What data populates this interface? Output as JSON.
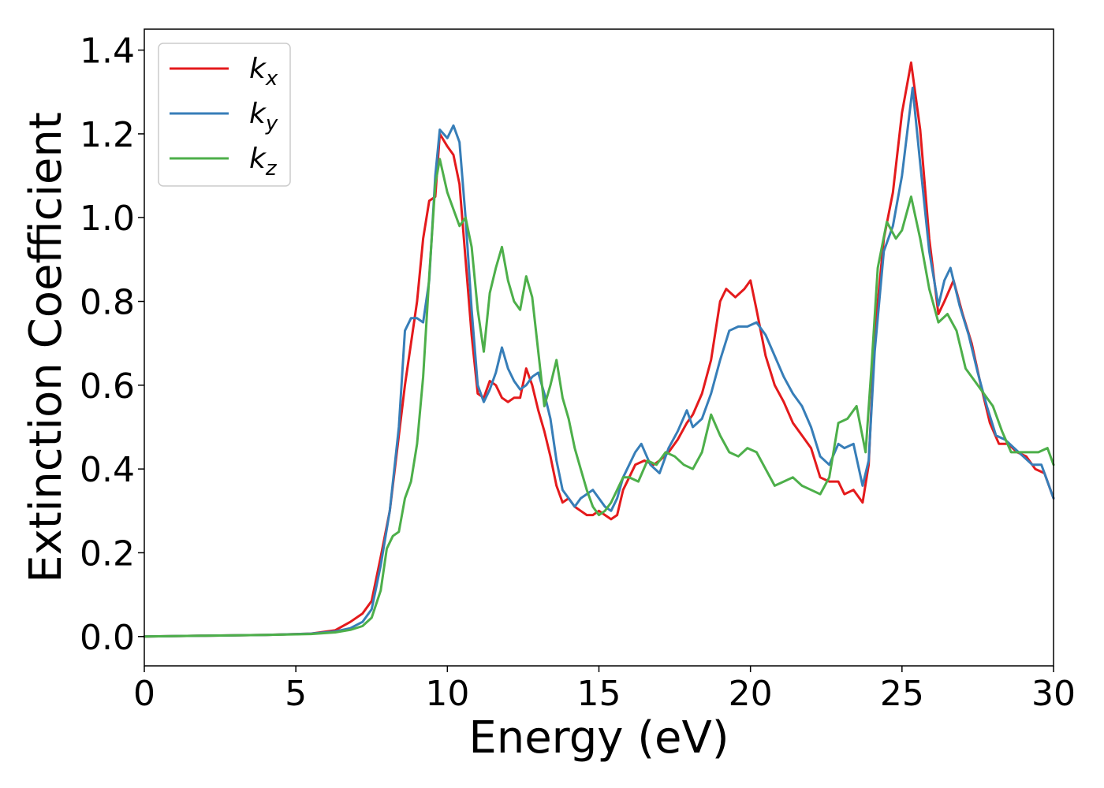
{
  "chart_data": {
    "type": "line",
    "xlabel": "Energy (eV)",
    "ylabel": "Extinction Coefficient",
    "xlim": [
      0,
      30
    ],
    "ylim": [
      -0.07,
      1.45
    ],
    "xticks": [
      0,
      5,
      10,
      15,
      20,
      25,
      30
    ],
    "xtick_labels": [
      "0",
      "5",
      "10",
      "15",
      "20",
      "25",
      "30"
    ],
    "yticks": [
      0.0,
      0.2,
      0.4,
      0.6,
      0.8,
      1.0,
      1.2,
      1.4
    ],
    "ytick_labels": [
      "0.0",
      "0.2",
      "0.4",
      "0.6",
      "0.8",
      "1.0",
      "1.2",
      "1.4"
    ],
    "grid": false,
    "legend_position": "top-left",
    "series": [
      {
        "name": "k",
        "subscript": "x",
        "color": "#e41a1c",
        "points": [
          [
            0,
            0
          ],
          [
            2,
            0.002
          ],
          [
            4,
            0.004
          ],
          [
            5.5,
            0.007
          ],
          [
            6.3,
            0.015
          ],
          [
            6.8,
            0.035
          ],
          [
            7.2,
            0.055
          ],
          [
            7.5,
            0.085
          ],
          [
            7.8,
            0.19
          ],
          [
            8.1,
            0.3
          ],
          [
            8.4,
            0.48
          ],
          [
            8.6,
            0.6
          ],
          [
            8.8,
            0.7
          ],
          [
            9.0,
            0.8
          ],
          [
            9.2,
            0.95
          ],
          [
            9.4,
            1.04
          ],
          [
            9.6,
            1.05
          ],
          [
            9.75,
            1.2
          ],
          [
            10.0,
            1.17
          ],
          [
            10.2,
            1.15
          ],
          [
            10.4,
            1.08
          ],
          [
            10.6,
            0.9
          ],
          [
            10.8,
            0.72
          ],
          [
            11.0,
            0.58
          ],
          [
            11.2,
            0.57
          ],
          [
            11.4,
            0.61
          ],
          [
            11.6,
            0.6
          ],
          [
            11.8,
            0.57
          ],
          [
            12.0,
            0.56
          ],
          [
            12.2,
            0.57
          ],
          [
            12.4,
            0.57
          ],
          [
            12.6,
            0.64
          ],
          [
            12.8,
            0.6
          ],
          [
            13.0,
            0.54
          ],
          [
            13.2,
            0.49
          ],
          [
            13.4,
            0.43
          ],
          [
            13.6,
            0.36
          ],
          [
            13.8,
            0.32
          ],
          [
            14.0,
            0.33
          ],
          [
            14.2,
            0.31
          ],
          [
            14.4,
            0.3
          ],
          [
            14.6,
            0.29
          ],
          [
            14.8,
            0.29
          ],
          [
            15.0,
            0.3
          ],
          [
            15.2,
            0.29
          ],
          [
            15.4,
            0.28
          ],
          [
            15.6,
            0.29
          ],
          [
            15.8,
            0.35
          ],
          [
            16.0,
            0.38
          ],
          [
            16.2,
            0.41
          ],
          [
            16.5,
            0.42
          ],
          [
            16.8,
            0.41
          ],
          [
            17.0,
            0.42
          ],
          [
            17.3,
            0.44
          ],
          [
            17.6,
            0.47
          ],
          [
            17.9,
            0.51
          ],
          [
            18.1,
            0.53
          ],
          [
            18.4,
            0.58
          ],
          [
            18.7,
            0.66
          ],
          [
            19.0,
            0.8
          ],
          [
            19.2,
            0.83
          ],
          [
            19.5,
            0.81
          ],
          [
            19.8,
            0.83
          ],
          [
            20.0,
            0.85
          ],
          [
            20.2,
            0.78
          ],
          [
            20.5,
            0.67
          ],
          [
            20.8,
            0.6
          ],
          [
            21.1,
            0.56
          ],
          [
            21.4,
            0.51
          ],
          [
            21.7,
            0.48
          ],
          [
            22.0,
            0.45
          ],
          [
            22.3,
            0.38
          ],
          [
            22.6,
            0.37
          ],
          [
            22.9,
            0.37
          ],
          [
            23.1,
            0.34
          ],
          [
            23.4,
            0.35
          ],
          [
            23.7,
            0.32
          ],
          [
            23.9,
            0.41
          ],
          [
            24.1,
            0.72
          ],
          [
            24.4,
            0.95
          ],
          [
            24.7,
            1.06
          ],
          [
            25.0,
            1.25
          ],
          [
            25.3,
            1.37
          ],
          [
            25.6,
            1.21
          ],
          [
            25.9,
            0.95
          ],
          [
            26.2,
            0.77
          ],
          [
            26.4,
            0.8
          ],
          [
            26.7,
            0.85
          ],
          [
            27.0,
            0.77
          ],
          [
            27.3,
            0.7
          ],
          [
            27.6,
            0.6
          ],
          [
            27.9,
            0.51
          ],
          [
            28.2,
            0.46
          ],
          [
            28.5,
            0.46
          ],
          [
            28.8,
            0.44
          ],
          [
            29.1,
            0.43
          ],
          [
            29.4,
            0.4
          ],
          [
            29.7,
            0.39
          ],
          [
            30.0,
            0.33
          ]
        ]
      },
      {
        "name": "k",
        "subscript": "y",
        "color": "#377eb8",
        "points": [
          [
            0,
            0
          ],
          [
            2,
            0.002
          ],
          [
            4,
            0.004
          ],
          [
            5.5,
            0.007
          ],
          [
            6.3,
            0.012
          ],
          [
            6.8,
            0.02
          ],
          [
            7.2,
            0.035
          ],
          [
            7.5,
            0.065
          ],
          [
            7.8,
            0.17
          ],
          [
            8.1,
            0.3
          ],
          [
            8.4,
            0.5
          ],
          [
            8.6,
            0.73
          ],
          [
            8.8,
            0.76
          ],
          [
            9.0,
            0.76
          ],
          [
            9.2,
            0.75
          ],
          [
            9.4,
            0.85
          ],
          [
            9.6,
            1.1
          ],
          [
            9.75,
            1.21
          ],
          [
            10.0,
            1.19
          ],
          [
            10.2,
            1.22
          ],
          [
            10.4,
            1.18
          ],
          [
            10.6,
            1.0
          ],
          [
            10.8,
            0.78
          ],
          [
            11.0,
            0.6
          ],
          [
            11.2,
            0.56
          ],
          [
            11.4,
            0.59
          ],
          [
            11.6,
            0.63
          ],
          [
            11.8,
            0.69
          ],
          [
            12.0,
            0.64
          ],
          [
            12.2,
            0.61
          ],
          [
            12.4,
            0.59
          ],
          [
            12.6,
            0.6
          ],
          [
            12.8,
            0.62
          ],
          [
            13.0,
            0.63
          ],
          [
            13.2,
            0.58
          ],
          [
            13.4,
            0.52
          ],
          [
            13.6,
            0.42
          ],
          [
            13.8,
            0.35
          ],
          [
            14.0,
            0.33
          ],
          [
            14.2,
            0.31
          ],
          [
            14.4,
            0.33
          ],
          [
            14.6,
            0.34
          ],
          [
            14.8,
            0.35
          ],
          [
            15.0,
            0.33
          ],
          [
            15.2,
            0.31
          ],
          [
            15.4,
            0.3
          ],
          [
            15.6,
            0.33
          ],
          [
            15.8,
            0.38
          ],
          [
            16.0,
            0.41
          ],
          [
            16.2,
            0.44
          ],
          [
            16.4,
            0.46
          ],
          [
            16.7,
            0.41
          ],
          [
            17.0,
            0.39
          ],
          [
            17.3,
            0.45
          ],
          [
            17.6,
            0.49
          ],
          [
            17.9,
            0.54
          ],
          [
            18.1,
            0.5
          ],
          [
            18.4,
            0.52
          ],
          [
            18.7,
            0.58
          ],
          [
            19.0,
            0.66
          ],
          [
            19.3,
            0.73
          ],
          [
            19.6,
            0.74
          ],
          [
            19.9,
            0.74
          ],
          [
            20.2,
            0.75
          ],
          [
            20.5,
            0.72
          ],
          [
            20.8,
            0.67
          ],
          [
            21.1,
            0.62
          ],
          [
            21.4,
            0.58
          ],
          [
            21.7,
            0.55
          ],
          [
            22.0,
            0.5
          ],
          [
            22.3,
            0.43
          ],
          [
            22.6,
            0.41
          ],
          [
            22.9,
            0.46
          ],
          [
            23.1,
            0.45
          ],
          [
            23.4,
            0.46
          ],
          [
            23.7,
            0.36
          ],
          [
            23.9,
            0.42
          ],
          [
            24.1,
            0.68
          ],
          [
            24.4,
            0.92
          ],
          [
            24.7,
            0.98
          ],
          [
            25.0,
            1.1
          ],
          [
            25.35,
            1.31
          ],
          [
            25.6,
            1.13
          ],
          [
            25.9,
            0.92
          ],
          [
            26.2,
            0.79
          ],
          [
            26.4,
            0.85
          ],
          [
            26.6,
            0.88
          ],
          [
            26.9,
            0.79
          ],
          [
            27.2,
            0.72
          ],
          [
            27.5,
            0.63
          ],
          [
            27.8,
            0.55
          ],
          [
            28.1,
            0.48
          ],
          [
            28.4,
            0.47
          ],
          [
            28.7,
            0.45
          ],
          [
            29.0,
            0.43
          ],
          [
            29.3,
            0.41
          ],
          [
            29.6,
            0.41
          ],
          [
            30.0,
            0.33
          ]
        ]
      },
      {
        "name": "k",
        "subscript": "z",
        "color": "#4daf4a",
        "points": [
          [
            0,
            0
          ],
          [
            2,
            0.002
          ],
          [
            4,
            0.004
          ],
          [
            5.5,
            0.006
          ],
          [
            6.3,
            0.01
          ],
          [
            6.8,
            0.016
          ],
          [
            7.2,
            0.025
          ],
          [
            7.5,
            0.045
          ],
          [
            7.8,
            0.11
          ],
          [
            8.0,
            0.21
          ],
          [
            8.2,
            0.24
          ],
          [
            8.4,
            0.25
          ],
          [
            8.6,
            0.33
          ],
          [
            8.8,
            0.37
          ],
          [
            9.0,
            0.46
          ],
          [
            9.2,
            0.62
          ],
          [
            9.4,
            0.86
          ],
          [
            9.6,
            1.08
          ],
          [
            9.75,
            1.14
          ],
          [
            10.0,
            1.06
          ],
          [
            10.2,
            1.02
          ],
          [
            10.4,
            0.98
          ],
          [
            10.6,
            1.0
          ],
          [
            10.8,
            0.93
          ],
          [
            11.0,
            0.78
          ],
          [
            11.2,
            0.68
          ],
          [
            11.4,
            0.82
          ],
          [
            11.6,
            0.88
          ],
          [
            11.8,
            0.93
          ],
          [
            12.0,
            0.85
          ],
          [
            12.2,
            0.8
          ],
          [
            12.4,
            0.78
          ],
          [
            12.6,
            0.86
          ],
          [
            12.8,
            0.81
          ],
          [
            13.0,
            0.68
          ],
          [
            13.2,
            0.55
          ],
          [
            13.4,
            0.6
          ],
          [
            13.6,
            0.66
          ],
          [
            13.8,
            0.57
          ],
          [
            14.0,
            0.52
          ],
          [
            14.2,
            0.45
          ],
          [
            14.4,
            0.4
          ],
          [
            14.6,
            0.35
          ],
          [
            14.8,
            0.31
          ],
          [
            15.0,
            0.29
          ],
          [
            15.2,
            0.3
          ],
          [
            15.4,
            0.32
          ],
          [
            15.6,
            0.35
          ],
          [
            15.8,
            0.38
          ],
          [
            16.0,
            0.38
          ],
          [
            16.3,
            0.37
          ],
          [
            16.6,
            0.42
          ],
          [
            16.9,
            0.41
          ],
          [
            17.2,
            0.44
          ],
          [
            17.5,
            0.43
          ],
          [
            17.8,
            0.41
          ],
          [
            18.1,
            0.4
          ],
          [
            18.4,
            0.44
          ],
          [
            18.7,
            0.53
          ],
          [
            19.0,
            0.48
          ],
          [
            19.3,
            0.44
          ],
          [
            19.6,
            0.43
          ],
          [
            19.9,
            0.45
          ],
          [
            20.2,
            0.44
          ],
          [
            20.5,
            0.4
          ],
          [
            20.8,
            0.36
          ],
          [
            21.1,
            0.37
          ],
          [
            21.4,
            0.38
          ],
          [
            21.7,
            0.36
          ],
          [
            22.0,
            0.35
          ],
          [
            22.3,
            0.34
          ],
          [
            22.6,
            0.38
          ],
          [
            22.9,
            0.51
          ],
          [
            23.2,
            0.52
          ],
          [
            23.5,
            0.55
          ],
          [
            23.8,
            0.44
          ],
          [
            24.0,
            0.65
          ],
          [
            24.2,
            0.88
          ],
          [
            24.5,
            0.99
          ],
          [
            24.8,
            0.95
          ],
          [
            25.0,
            0.97
          ],
          [
            25.3,
            1.05
          ],
          [
            25.6,
            0.95
          ],
          [
            25.9,
            0.83
          ],
          [
            26.2,
            0.75
          ],
          [
            26.5,
            0.77
          ],
          [
            26.8,
            0.73
          ],
          [
            27.1,
            0.64
          ],
          [
            27.4,
            0.61
          ],
          [
            27.7,
            0.58
          ],
          [
            28.0,
            0.55
          ],
          [
            28.3,
            0.49
          ],
          [
            28.6,
            0.44
          ],
          [
            28.9,
            0.44
          ],
          [
            29.2,
            0.44
          ],
          [
            29.5,
            0.44
          ],
          [
            29.8,
            0.45
          ],
          [
            30.0,
            0.41
          ]
        ]
      }
    ]
  }
}
